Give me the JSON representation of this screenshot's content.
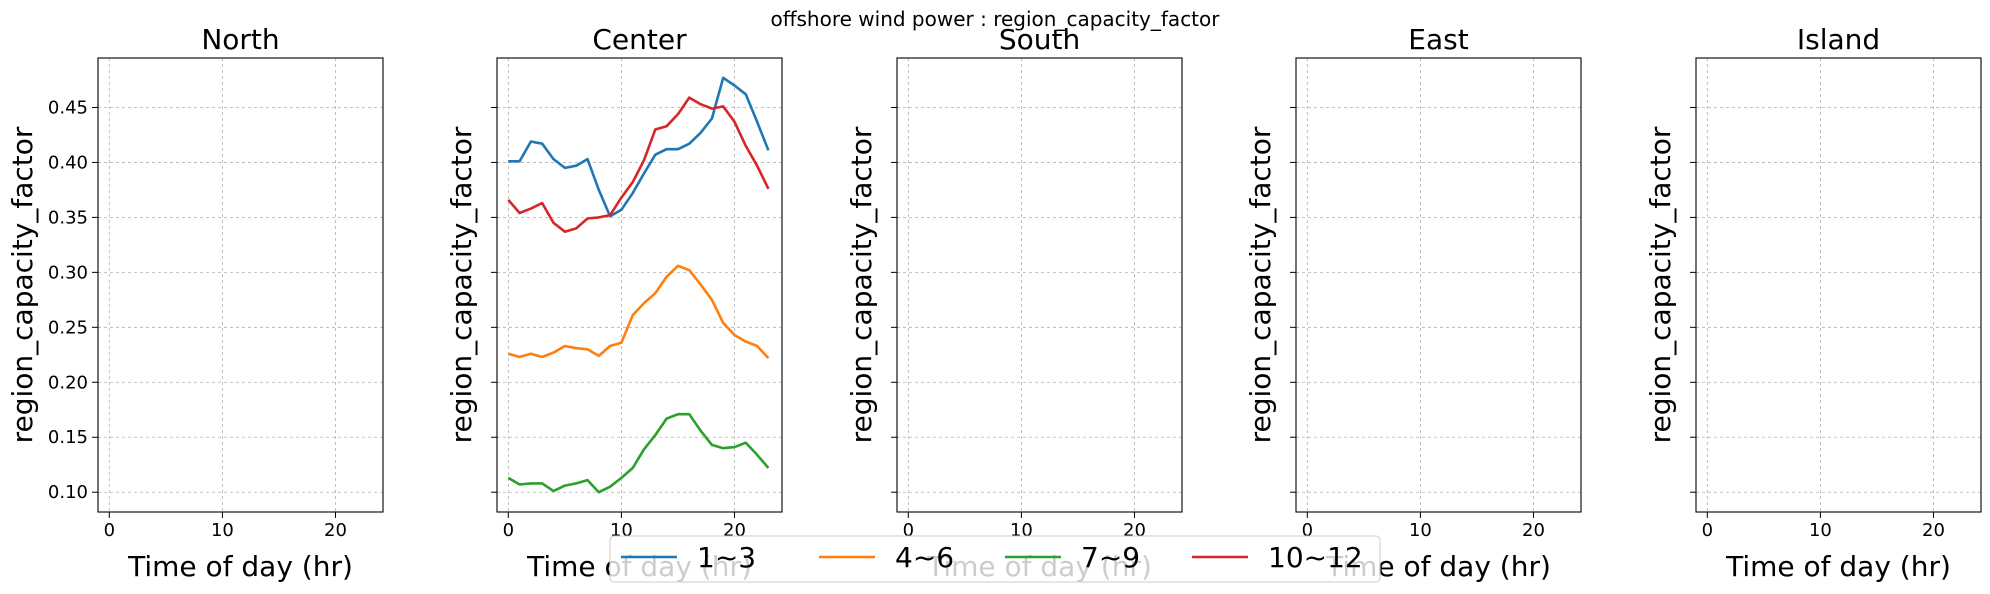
{
  "chart_data": {
    "type": "line",
    "title": "offshore wind power : region_capacity_factor",
    "x_label": "Time of day (hr)",
    "y_label": "region_capacity_factor",
    "xlim": [
      -1,
      24.2
    ],
    "ylim": [
      0.082,
      0.495
    ],
    "x_ticks": [
      0,
      10,
      20
    ],
    "y_ticks": [
      0.1,
      0.15,
      0.2,
      0.25,
      0.3,
      0.35,
      0.4,
      0.45
    ],
    "y_tick_labels": [
      "0.10",
      "0.15",
      "0.20",
      "0.25",
      "0.30",
      "0.35",
      "0.40",
      "0.45"
    ],
    "grid": true,
    "legend_position": "bottom-center",
    "colors": {
      "1~3": "#1f77b4",
      "4~6": "#ff7f0e",
      "7~9": "#2ca02c",
      "10~12": "#d62728"
    },
    "legend": [
      "1~3",
      "4~6",
      "7~9",
      "10~12"
    ],
    "x": [
      0,
      1,
      2,
      3,
      4,
      5,
      6,
      7,
      8,
      9,
      10,
      11,
      12,
      13,
      14,
      15,
      16,
      17,
      18,
      19,
      20,
      21,
      22,
      23
    ],
    "panels": [
      {
        "title": "North",
        "series": []
      },
      {
        "title": "Center",
        "series": [
          {
            "name": "1~3",
            "values": [
              0.401,
              0.401,
              0.419,
              0.417,
              0.403,
              0.395,
              0.397,
              0.403,
              0.375,
              0.351,
              0.357,
              0.372,
              0.39,
              0.407,
              0.412,
              0.412,
              0.417,
              0.427,
              0.44,
              0.477,
              0.47,
              0.462,
              0.437,
              0.411
            ]
          },
          {
            "name": "4~6",
            "values": [
              0.226,
              0.223,
              0.226,
              0.223,
              0.227,
              0.233,
              0.231,
              0.23,
              0.224,
              0.233,
              0.236,
              0.261,
              0.272,
              0.281,
              0.296,
              0.306,
              0.302,
              0.289,
              0.275,
              0.254,
              0.243,
              0.237,
              0.233,
              0.222
            ]
          },
          {
            "name": "7~9",
            "values": [
              0.113,
              0.107,
              0.108,
              0.108,
              0.101,
              0.106,
              0.108,
              0.111,
              0.1,
              0.105,
              0.113,
              0.122,
              0.139,
              0.152,
              0.167,
              0.171,
              0.171,
              0.156,
              0.143,
              0.14,
              0.141,
              0.145,
              0.134,
              0.122
            ]
          },
          {
            "name": "10~12",
            "values": [
              0.366,
              0.354,
              0.358,
              0.363,
              0.345,
              0.337,
              0.34,
              0.349,
              0.35,
              0.352,
              0.368,
              0.382,
              0.402,
              0.43,
              0.433,
              0.444,
              0.459,
              0.453,
              0.449,
              0.451,
              0.437,
              0.415,
              0.397,
              0.376
            ]
          }
        ]
      },
      {
        "title": "South",
        "series": []
      },
      {
        "title": "East",
        "series": []
      },
      {
        "title": "Island",
        "series": []
      }
    ]
  }
}
